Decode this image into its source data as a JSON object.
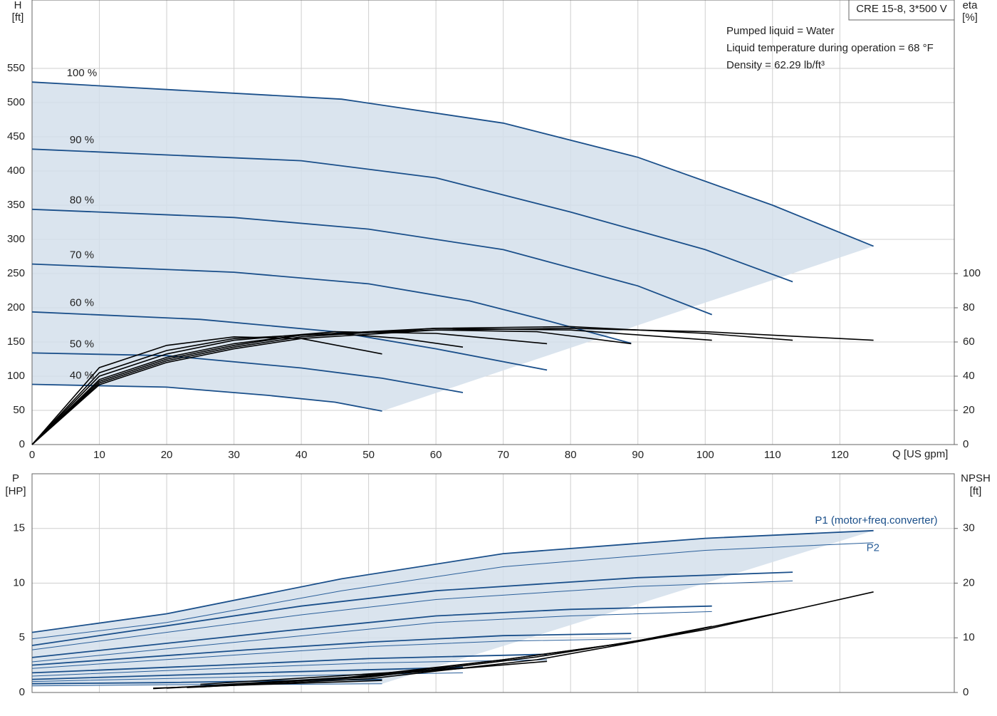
{
  "chart_data": [
    {
      "type": "line",
      "title": "CRE 15-8, 3*500 V",
      "annotations": [
        "Pumped liquid = Water",
        "Liquid temperature during operation = 68 °F",
        "Density = 62.29 lb/ft³"
      ],
      "ylabel": "H",
      "yunit": "[ft]",
      "y2label": "eta",
      "y2unit": "[%]",
      "xlabel": "Q [US gpm]",
      "xlim": [
        0,
        137
      ],
      "xticks": [
        0,
        10,
        20,
        30,
        40,
        50,
        60,
        70,
        80,
        90,
        100,
        110,
        120
      ],
      "ylim": [
        0,
        650
      ],
      "yticks": [
        0,
        50,
        100,
        150,
        200,
        250,
        300,
        350,
        400,
        450,
        500,
        550
      ],
      "y2lim": [
        0,
        260
      ],
      "y2ticks": [
        0,
        20,
        40,
        60,
        80,
        100
      ],
      "grid": true,
      "series": [
        {
          "name": "100 %",
          "color": "#1a4f8a",
          "x": [
            0,
            46,
            70,
            90,
            110,
            125
          ],
          "values": [
            530,
            505,
            470,
            420,
            350,
            290
          ]
        },
        {
          "name": "90 %",
          "color": "#1a4f8a",
          "x": [
            0,
            40,
            60,
            80,
            100,
            113
          ],
          "values": [
            432,
            415,
            390,
            340,
            285,
            238
          ]
        },
        {
          "name": "80 %",
          "color": "#1a4f8a",
          "x": [
            0,
            30,
            50,
            70,
            90,
            101
          ],
          "values": [
            344,
            332,
            315,
            285,
            232,
            190
          ]
        },
        {
          "name": "70 %",
          "color": "#1a4f8a",
          "x": [
            0,
            30,
            50,
            65,
            77,
            89
          ],
          "values": [
            264,
            252,
            235,
            210,
            180,
            148
          ]
        },
        {
          "name": "60 %",
          "color": "#1a4f8a",
          "x": [
            0,
            25,
            45,
            60,
            76.5
          ],
          "values": [
            194,
            183,
            165,
            140,
            109
          ]
        },
        {
          "name": "50 %",
          "color": "#1a4f8a",
          "x": [
            0,
            20,
            40,
            52,
            64
          ],
          "values": [
            134,
            130,
            112,
            97,
            76
          ]
        },
        {
          "name": "40 %",
          "color": "#1a4f8a",
          "x": [
            0,
            20,
            35,
            45,
            52
          ],
          "values": [
            88,
            84,
            72,
            62,
            49
          ]
        },
        {
          "axis": "y2",
          "color": "#000000",
          "x": [
            0,
            10,
            20,
            30,
            40,
            60,
            80,
            100,
            125
          ],
          "values": [
            0,
            35,
            48,
            56,
            62,
            67,
            68,
            66,
            61
          ]
        },
        {
          "axis": "y2",
          "color": "#000000",
          "x": [
            0,
            10,
            20,
            30,
            40,
            60,
            80,
            100,
            113
          ],
          "values": [
            0,
            36,
            49,
            57,
            63,
            68,
            69,
            65,
            61
          ]
        },
        {
          "axis": "y2",
          "color": "#000000",
          "x": [
            0,
            10,
            20,
            30,
            40,
            60,
            80,
            101
          ],
          "values": [
            0,
            37,
            50,
            58,
            64,
            68,
            67,
            61
          ]
        },
        {
          "axis": "y2",
          "color": "#000000",
          "x": [
            0,
            10,
            20,
            30,
            40,
            60,
            75,
            89
          ],
          "values": [
            0,
            38,
            51,
            59,
            64,
            67,
            66,
            59
          ]
        },
        {
          "axis": "y2",
          "color": "#000000",
          "x": [
            0,
            10,
            20,
            30,
            45,
            60,
            76.5
          ],
          "values": [
            0,
            40,
            53,
            61,
            66,
            65,
            59
          ]
        },
        {
          "axis": "y2",
          "color": "#000000",
          "x": [
            0,
            10,
            20,
            30,
            45,
            55,
            64
          ],
          "values": [
            0,
            42,
            55,
            62,
            65,
            62,
            57
          ]
        },
        {
          "axis": "y2",
          "color": "#000000",
          "x": [
            0,
            10,
            20,
            30,
            40,
            52
          ],
          "values": [
            0,
            45,
            58,
            63,
            62,
            53
          ]
        }
      ]
    },
    {
      "type": "line",
      "ylabel": "P",
      "yunit": "[HP]",
      "y2label": "NPSH",
      "y2unit": "[ft]",
      "xlim": [
        0,
        137
      ],
      "ylim": [
        0,
        20
      ],
      "yticks": [
        0,
        5,
        10,
        15
      ],
      "y2lim": [
        0,
        40
      ],
      "y2ticks": [
        0,
        10,
        20,
        30
      ],
      "grid": true,
      "series": [
        {
          "name": "P1 (motor+freq.converter)",
          "color": "#1a4f8a",
          "x": [
            0,
            20,
            46,
            70,
            100,
            125
          ],
          "values": [
            5.5,
            7.2,
            10.4,
            12.7,
            14.1,
            14.8
          ]
        },
        {
          "color": "#1a4f8a",
          "x": [
            0,
            40,
            60,
            90,
            113
          ],
          "values": [
            4.3,
            7.9,
            9.3,
            10.5,
            11.0
          ]
        },
        {
          "color": "#1a4f8a",
          "x": [
            0,
            37,
            60,
            80,
            101
          ],
          "values": [
            3.2,
            5.6,
            7.0,
            7.6,
            7.9
          ]
        },
        {
          "color": "#1a4f8a",
          "x": [
            0,
            32,
            50,
            70,
            89
          ],
          "values": [
            2.5,
            3.9,
            4.6,
            5.2,
            5.4
          ]
        },
        {
          "color": "#1a4f8a",
          "x": [
            0,
            28,
            50,
            76.5
          ],
          "values": [
            1.8,
            2.5,
            3.1,
            3.5
          ]
        },
        {
          "color": "#1a4f8a",
          "x": [
            0,
            22,
            45,
            64
          ],
          "values": [
            1.2,
            1.6,
            2.0,
            2.3
          ]
        },
        {
          "color": "#1a4f8a",
          "x": [
            0,
            19,
            40,
            52
          ],
          "values": [
            0.8,
            0.9,
            1.1,
            1.2
          ]
        },
        {
          "name": "P2",
          "color": "#2a5f9a",
          "x": [
            0,
            20,
            46,
            70,
            100,
            125
          ],
          "values": [
            4.9,
            6.4,
            9.3,
            11.5,
            13.0,
            13.7
          ]
        },
        {
          "color": "#2a5f9a",
          "x": [
            0,
            40,
            60,
            90,
            113
          ],
          "values": [
            3.9,
            7.1,
            8.5,
            9.7,
            10.2
          ]
        },
        {
          "color": "#2a5f9a",
          "x": [
            0,
            37,
            60,
            80,
            101
          ],
          "values": [
            2.8,
            5.0,
            6.4,
            7.0,
            7.4
          ]
        },
        {
          "color": "#2a5f9a",
          "x": [
            0,
            32,
            50,
            70,
            89
          ],
          "values": [
            2.2,
            3.5,
            4.2,
            4.7,
            4.9
          ]
        },
        {
          "color": "#2a5f9a",
          "x": [
            0,
            28,
            50,
            76.5
          ],
          "values": [
            1.5,
            2.2,
            2.7,
            3.0
          ]
        },
        {
          "color": "#2a5f9a",
          "x": [
            0,
            22,
            45,
            64
          ],
          "values": [
            1.0,
            1.3,
            1.6,
            1.8
          ]
        },
        {
          "color": "#2a5f9a",
          "x": [
            0,
            19,
            40,
            52
          ],
          "values": [
            0.6,
            0.7,
            0.75,
            0.8
          ]
        },
        {
          "axis": "y2",
          "color": "#000000",
          "x": [
            23,
            50,
            75,
            100,
            125
          ],
          "values": [
            0.9,
            2.5,
            6,
            11.5,
            18.4
          ]
        },
        {
          "axis": "y2",
          "color": "#000000",
          "x": [
            20,
            50,
            75,
            95,
            113
          ],
          "values": [
            0.8,
            2.8,
            6.5,
            10.5,
            15.1
          ]
        },
        {
          "axis": "y2",
          "color": "#000000",
          "x": [
            18,
            45,
            70,
            88,
            101
          ],
          "values": [
            0.7,
            2.5,
            6,
            9,
            12.1
          ]
        },
        {
          "axis": "y2",
          "color": "#000000",
          "x": [
            25,
            50,
            70,
            89
          ],
          "values": [
            1.0,
            3.0,
            6,
            9.2
          ]
        },
        {
          "axis": "y2",
          "color": "#000000",
          "x": [
            25,
            50,
            76.5
          ],
          "values": [
            1.2,
            3,
            5.7
          ]
        },
        {
          "axis": "y2",
          "color": "#000000",
          "x": [
            25,
            45,
            64
          ],
          "values": [
            1.5,
            3,
            4.5
          ]
        },
        {
          "axis": "y2",
          "color": "#000000",
          "x": [
            18,
            35,
            52
          ],
          "values": [
            0.8,
            1.5,
            2.2
          ]
        }
      ]
    }
  ]
}
